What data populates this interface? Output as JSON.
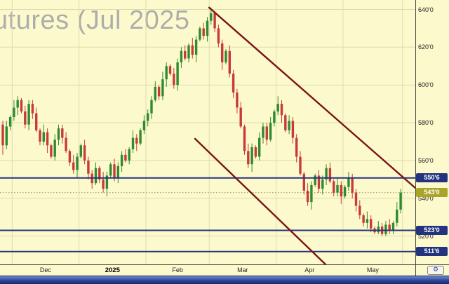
{
  "window": {
    "watermark_title": "utures (Jul 2025"
  },
  "axis_button": {
    "glyph": "⚙"
  },
  "chart_data": {
    "type": "candlestick",
    "title": "utures (Jul 2025",
    "price_format": "points and eighths (e.g. 550'6 = 550.75)",
    "y_axis": {
      "min": 505,
      "max": 645,
      "tick_values": [
        640,
        620,
        600,
        580,
        560,
        540,
        520
      ],
      "tick_labels": [
        "640'0",
        "620'0",
        "600'0",
        "580'0",
        "560'0",
        "540'0",
        "520'0"
      ]
    },
    "x_axis": {
      "labels": [
        "Dec",
        "2025",
        "Feb",
        "Mar",
        "Apr",
        "May"
      ],
      "bold_label": "2025",
      "boundaries_index": [
        3,
        21,
        39,
        56,
        74,
        92,
        108
      ]
    },
    "horizontal_levels": [
      {
        "price": 550.75,
        "label": "550'6",
        "color": "#24337E"
      },
      {
        "price": 523.0,
        "label": "523'0",
        "color": "#24337E"
      },
      {
        "price": 511.75,
        "label": "511'6",
        "color": "#24337E"
      }
    ],
    "last_price": {
      "price": 543.0,
      "label": "543'0",
      "badge_color": "#A9A52B",
      "line_color": "#99914F"
    },
    "trend_lines": [
      {
        "x1_index": 55.5,
        "y1_price": 641.0,
        "x2_index": 110.9,
        "y2_price": 545.5,
        "color": "#7A1518"
      },
      {
        "x1_index": 51.7,
        "y1_price": 571.5,
        "x2_index": 87.0,
        "y2_price": 504.6,
        "color": "#7A1518"
      }
    ],
    "colors": {
      "up": "#2E8B2E",
      "down": "#C93A3A",
      "background": "#FCFACD",
      "grid": "#DEDAB0",
      "level_badge": "#24337E"
    },
    "candles_format": [
      "open",
      "high",
      "low",
      "close"
    ],
    "candles": [
      [
        579,
        581,
        563,
        568
      ],
      [
        568,
        581,
        566,
        578
      ],
      [
        578,
        584,
        576,
        583
      ],
      [
        583,
        592,
        581,
        588
      ],
      [
        588,
        594,
        584,
        592
      ],
      [
        592,
        593,
        585,
        586
      ],
      [
        586,
        589,
        577,
        579
      ],
      [
        579,
        592,
        576,
        590
      ],
      [
        590,
        592,
        582,
        585
      ],
      [
        585,
        588,
        575,
        576
      ],
      [
        576,
        577,
        568,
        570
      ],
      [
        570,
        579,
        568,
        575
      ],
      [
        575,
        577,
        564,
        568
      ],
      [
        568,
        569,
        561,
        562
      ],
      [
        562,
        574,
        560,
        571
      ],
      [
        571,
        579,
        568,
        577
      ],
      [
        577,
        579,
        569,
        572
      ],
      [
        572,
        575,
        564,
        565
      ],
      [
        565,
        566,
        557,
        559
      ],
      [
        559,
        563,
        553,
        555
      ],
      [
        555,
        564,
        551,
        562
      ],
      [
        562,
        569,
        561,
        568
      ],
      [
        568,
        571,
        558,
        560
      ],
      [
        560,
        562,
        550,
        553
      ],
      [
        553,
        555,
        545,
        548
      ],
      [
        548,
        559,
        547,
        556
      ],
      [
        556,
        557,
        548,
        550
      ],
      [
        550,
        554,
        543,
        545
      ],
      [
        545,
        554,
        541,
        552
      ],
      [
        552,
        559,
        551,
        558
      ],
      [
        558,
        561,
        549,
        551
      ],
      [
        551,
        559,
        548,
        557
      ],
      [
        557,
        565,
        554,
        563
      ],
      [
        563,
        566,
        559,
        560
      ],
      [
        560,
        567,
        558,
        566
      ],
      [
        566,
        576,
        564,
        572
      ],
      [
        572,
        574,
        565,
        569
      ],
      [
        569,
        577,
        568,
        576
      ],
      [
        576,
        584,
        574,
        581
      ],
      [
        581,
        587,
        578,
        585
      ],
      [
        585,
        594,
        582,
        592
      ],
      [
        592,
        602,
        591,
        599
      ],
      [
        599,
        600,
        592,
        594
      ],
      [
        594,
        607,
        592,
        603
      ],
      [
        603,
        612,
        599,
        610
      ],
      [
        610,
        611,
        605,
        606
      ],
      [
        606,
        609,
        598,
        600
      ],
      [
        600,
        614,
        597,
        612
      ],
      [
        612,
        620,
        609,
        618
      ],
      [
        618,
        621,
        613,
        614
      ],
      [
        614,
        622,
        612,
        621
      ],
      [
        621,
        625,
        614,
        616
      ],
      [
        616,
        626,
        612,
        624
      ],
      [
        624,
        631,
        623,
        630
      ],
      [
        630,
        633,
        624,
        626
      ],
      [
        626,
        636,
        623,
        634
      ],
      [
        634,
        641,
        632,
        638
      ],
      [
        638,
        639,
        628,
        630
      ],
      [
        630,
        632,
        620,
        622
      ],
      [
        622,
        624,
        608,
        612
      ],
      [
        612,
        619,
        611,
        618
      ],
      [
        618,
        621,
        604,
        606
      ],
      [
        606,
        608,
        593,
        596
      ],
      [
        596,
        598,
        585,
        588
      ],
      [
        588,
        591,
        577,
        578
      ],
      [
        578,
        579,
        563,
        565
      ],
      [
        565,
        569,
        556,
        558
      ],
      [
        558,
        569,
        554,
        567
      ],
      [
        567,
        568,
        561,
        562
      ],
      [
        562,
        575,
        560,
        572
      ],
      [
        572,
        580,
        569,
        578
      ],
      [
        578,
        580,
        568,
        571
      ],
      [
        571,
        583,
        570,
        580
      ],
      [
        580,
        587,
        578,
        586
      ],
      [
        586,
        594,
        584,
        590
      ],
      [
        590,
        592,
        580,
        584
      ],
      [
        584,
        585,
        575,
        576
      ],
      [
        576,
        584,
        574,
        581
      ],
      [
        581,
        583,
        569,
        572
      ],
      [
        572,
        574,
        559,
        562
      ],
      [
        562,
        565,
        552,
        553
      ],
      [
        553,
        554,
        542,
        544
      ],
      [
        544,
        548,
        536,
        538
      ],
      [
        538,
        549,
        534,
        547
      ],
      [
        547,
        553,
        546,
        552
      ],
      [
        552,
        555,
        543,
        545
      ],
      [
        545,
        552,
        542,
        550
      ],
      [
        550,
        558,
        547,
        556
      ],
      [
        556,
        559,
        548,
        549
      ],
      [
        549,
        550,
        541,
        543
      ],
      [
        543,
        551,
        541,
        547
      ],
      [
        547,
        549,
        537,
        541
      ],
      [
        541,
        547,
        540,
        546
      ],
      [
        546,
        554,
        544,
        551
      ],
      [
        551,
        553,
        540,
        543
      ],
      [
        543,
        545,
        533,
        536
      ],
      [
        536,
        539,
        529,
        531
      ],
      [
        531,
        532,
        525,
        527
      ],
      [
        527,
        533,
        524,
        529
      ],
      [
        529,
        531,
        522,
        524
      ],
      [
        524,
        525,
        521,
        522
      ],
      [
        522,
        528,
        521,
        525
      ],
      [
        525,
        527,
        520,
        521
      ],
      [
        521,
        528,
        520,
        526
      ],
      [
        526,
        529,
        521,
        523
      ],
      [
        523,
        528,
        521,
        527
      ],
      [
        527,
        538,
        525,
        534
      ],
      [
        534,
        545,
        532,
        543
      ]
    ]
  }
}
